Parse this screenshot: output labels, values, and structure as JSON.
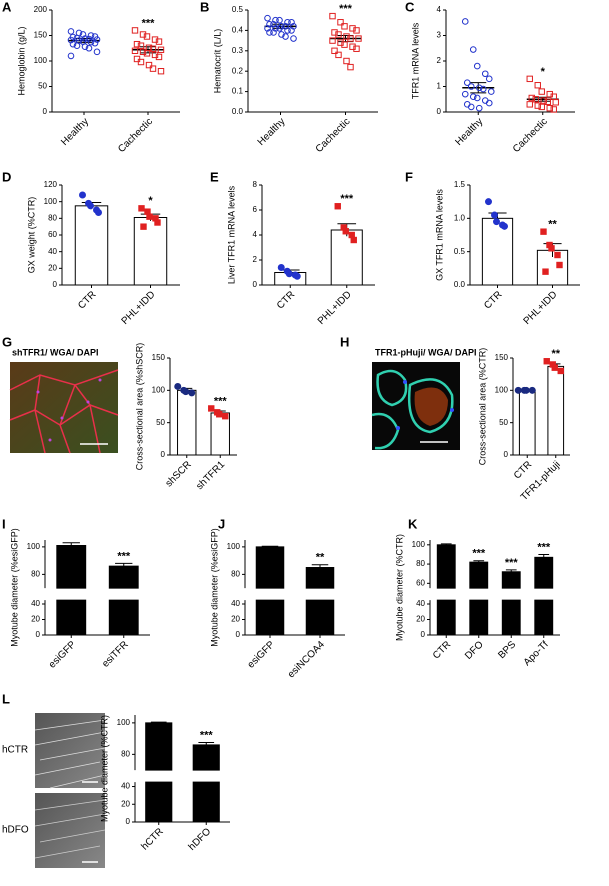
{
  "chart_data": [
    {
      "type": "strip",
      "label": "A",
      "ylabel": "Hemoglobin (g/L)",
      "categories": [
        "Healthy",
        "Cachectic"
      ],
      "values": [
        140,
        122
      ],
      "errors": [
        4,
        6
      ],
      "points": [
        [
          158,
          155,
          152,
          150,
          148,
          147,
          145,
          144,
          143,
          142,
          141,
          140,
          138,
          137,
          135,
          133,
          130,
          128,
          125,
          118,
          110
        ],
        [
          160,
          152,
          148,
          142,
          138,
          133,
          130,
          126,
          124,
          122,
          120,
          118,
          115,
          112,
          108,
          104,
          98,
          92,
          85,
          80
        ]
      ],
      "point_colors": [
        "#2233cc",
        "#e02020"
      ],
      "markers": [
        "circle",
        "square"
      ],
      "filled": false,
      "significance": [
        null,
        "***"
      ],
      "ylim": [
        0,
        200
      ],
      "yticks": [
        0,
        50,
        100,
        150,
        200
      ]
    },
    {
      "type": "strip",
      "label": "B",
      "ylabel": "Hematocrit (L/L)",
      "categories": [
        "Healthy",
        "Cachectic"
      ],
      "values": [
        0.42,
        0.36
      ],
      "errors": [
        0.01,
        0.015
      ],
      "points": [
        [
          0.46,
          0.45,
          0.45,
          0.44,
          0.44,
          0.43,
          0.43,
          0.42,
          0.42,
          0.42,
          0.41,
          0.41,
          0.41,
          0.4,
          0.4,
          0.39,
          0.39,
          0.38,
          0.37,
          0.36
        ],
        [
          0.47,
          0.44,
          0.42,
          0.41,
          0.4,
          0.39,
          0.38,
          0.37,
          0.36,
          0.36,
          0.35,
          0.34,
          0.33,
          0.32,
          0.31,
          0.3,
          0.28,
          0.25,
          0.22
        ]
      ],
      "point_colors": [
        "#2233cc",
        "#e02020"
      ],
      "markers": [
        "circle",
        "square"
      ],
      "filled": false,
      "significance": [
        null,
        "***"
      ],
      "ylim": [
        0,
        0.5
      ],
      "yticks": [
        {
          "value": 0,
          "label": "0.0"
        },
        0.1,
        0.2,
        0.3,
        0.4,
        0.5
      ]
    },
    {
      "type": "strip",
      "label": "C",
      "ylabel": "TFR1 mRNA levels",
      "categories": [
        "Healthy",
        "Cachectic"
      ],
      "values": [
        0.95,
        0.5
      ],
      "errors": [
        0.2,
        0.08
      ],
      "points": [
        [
          3.55,
          2.45,
          1.8,
          1.5,
          1.3,
          1.15,
          1.0,
          0.95,
          0.9,
          0.8,
          0.7,
          0.6,
          0.55,
          0.45,
          0.35,
          0.3,
          0.2,
          0.15
        ],
        [
          1.3,
          1.05,
          0.8,
          0.7,
          0.6,
          0.55,
          0.5,
          0.45,
          0.4,
          0.38,
          0.3,
          0.25,
          0.2,
          0.15,
          0.1
        ]
      ],
      "point_colors": [
        "#2233cc",
        "#e02020"
      ],
      "markers": [
        "circle",
        "square"
      ],
      "filled": false,
      "significance": [
        null,
        "*"
      ],
      "ylim": [
        0,
        4
      ],
      "yticks": [
        0,
        1,
        2,
        3,
        4
      ]
    },
    {
      "type": "bar",
      "label": "D",
      "ylabel": "GX weight (%CTR)",
      "categories": [
        "CTR",
        "PHL+IDD"
      ],
      "values": [
        95,
        81
      ],
      "errors": [
        4,
        4
      ],
      "color": "#ffffff",
      "points": [
        [
          108,
          98,
          95,
          90,
          87
        ],
        [
          92,
          88,
          82,
          80,
          75,
          70
        ]
      ],
      "point_colors": [
        "#2233cc",
        "#e02020"
      ],
      "markers": [
        "circle",
        "square"
      ],
      "filled": true,
      "significance": [
        null,
        "*"
      ],
      "ylim": [
        0,
        120
      ],
      "yticks": [
        0,
        20,
        40,
        60,
        80,
        100,
        120
      ]
    },
    {
      "type": "bar",
      "label": "E",
      "ylabel": "Liver TFR1 mRNA levels",
      "categories": [
        "CTR",
        "PHL+IDD"
      ],
      "values": [
        1.0,
        4.4
      ],
      "errors": [
        0.2,
        0.5
      ],
      "color": "#ffffff",
      "points": [
        [
          1.4,
          1.1,
          0.9,
          0.8,
          0.7
        ],
        [
          6.3,
          4.6,
          4.3,
          4.0,
          3.6
        ]
      ],
      "point_colors": [
        "#2233cc",
        "#e02020"
      ],
      "markers": [
        "circle",
        "square"
      ],
      "filled": true,
      "significance": [
        null,
        "***"
      ],
      "ylim": [
        0,
        8
      ],
      "yticks": [
        0,
        2,
        4,
        6,
        8
      ]
    },
    {
      "type": "bar",
      "label": "F",
      "ylabel": "GX TFR1 mRNA levels",
      "categories": [
        "CTR",
        "PHL+IDD"
      ],
      "values": [
        1.0,
        0.52
      ],
      "errors": [
        0.08,
        0.1
      ],
      "color": "#ffffff",
      "points": [
        [
          1.25,
          1.05,
          0.95,
          0.9,
          0.88
        ],
        [
          0.8,
          0.6,
          0.55,
          0.45,
          0.3,
          0.2
        ]
      ],
      "point_colors": [
        "#2233cc",
        "#e02020"
      ],
      "markers": [
        "circle",
        "square"
      ],
      "filled": true,
      "significance": [
        null,
        "**"
      ],
      "ylim": [
        0,
        1.5
      ],
      "yticks": [
        {
          "value": 0,
          "label": "0.0"
        },
        0.5,
        {
          "value": 1,
          "label": "1.0"
        },
        1.5
      ]
    },
    {
      "type": "bar",
      "label": "G",
      "ylabel": "Cross-sectional area (%shSCR)",
      "categories": [
        "shSCR",
        "shTFR1"
      ],
      "values": [
        100,
        65
      ],
      "errors": [
        3,
        3
      ],
      "color": "#ffffff",
      "points": [
        [
          106,
          100,
          98,
          96
        ],
        [
          72,
          66,
          63,
          60
        ]
      ],
      "point_colors": [
        "#1a2a80",
        "#e02020"
      ],
      "markers": [
        "circle",
        "square"
      ],
      "filled": true,
      "significance": [
        null,
        "***"
      ],
      "ylim": [
        0,
        150
      ],
      "yticks": [
        0,
        50,
        100,
        150
      ],
      "image_label": [
        {
          "text": "shTFR1",
          "color": "#3aa13a"
        },
        {
          "text": "/ ",
          "color": "#000000"
        },
        {
          "text": "WGA",
          "color": "#e02020"
        },
        {
          "text": "/ ",
          "color": "#000000"
        },
        {
          "text": "DAPI",
          "color": "#2233cc"
        }
      ]
    },
    {
      "type": "bar",
      "label": "H",
      "ylabel": "Cross-sectional area (%CTR)",
      "categories": [
        "CTR",
        "TFR1-pHuji"
      ],
      "values": [
        100,
        137
      ],
      "errors": [
        0,
        4
      ],
      "color": "#ffffff",
      "points": [
        [
          100,
          100,
          100,
          100
        ],
        [
          145,
          140,
          135,
          130
        ]
      ],
      "point_colors": [
        "#1a2a80",
        "#e02020"
      ],
      "markers": [
        "circle",
        "square"
      ],
      "filled": true,
      "significance": [
        null,
        "**"
      ],
      "ylim": [
        0,
        150
      ],
      "yticks": [
        0,
        50,
        100,
        150
      ],
      "image_label": [
        {
          "text": "TFR1-pHuji",
          "color": "#e02020"
        },
        {
          "text": "/ ",
          "color": "#000000"
        },
        {
          "text": "WGA",
          "color": "#3aa13a"
        },
        {
          "text": "/ ",
          "color": "#000000"
        },
        {
          "text": "DAPI",
          "color": "#2233cc"
        }
      ]
    },
    {
      "type": "bar",
      "label": "I",
      "ylabel": "Myotube diameter (%esiGFP)",
      "categories": [
        "esiGFP",
        "esiTFR"
      ],
      "values": [
        101,
        86
      ],
      "errors": [
        2,
        2
      ],
      "color": "#000000",
      "significance": [
        null,
        "***"
      ],
      "ylim": [
        0,
        105
      ],
      "ybreak": [
        45,
        70
      ],
      "yticks": [
        0,
        20,
        40,
        80,
        100
      ]
    },
    {
      "type": "bar",
      "label": "J",
      "ylabel": "Myotube diameter (%esiGFP)",
      "categories": [
        "esiGFP",
        "esiNCOA4"
      ],
      "values": [
        100,
        85
      ],
      "errors": [
        0.5,
        2
      ],
      "color": "#000000",
      "significance": [
        null,
        "**"
      ],
      "ylim": [
        0,
        105
      ],
      "ybreak": [
        45,
        70
      ],
      "yticks": [
        0,
        20,
        40,
        80,
        100
      ]
    },
    {
      "type": "bar",
      "label": "K",
      "ylabel": "Myotube diameter (%CTR)",
      "categories": [
        "CTR",
        "DFO",
        "BPS",
        "Apo-Tf"
      ],
      "values": [
        100,
        82,
        72,
        87
      ],
      "errors": [
        1,
        1.5,
        2,
        3
      ],
      "color": "#000000",
      "significance": [
        null,
        "***",
        "***",
        "***"
      ],
      "ylim": [
        0,
        105
      ],
      "ybreak": [
        45,
        55
      ],
      "yticks": [
        0,
        20,
        40,
        60,
        80,
        100
      ]
    },
    {
      "type": "bar",
      "label": "L",
      "ylabel": "Myotube diameter (%CTR)",
      "categories": [
        "hCTR",
        "hDFO"
      ],
      "values": [
        100,
        86
      ],
      "errors": [
        0.5,
        1.5
      ],
      "color": "#000000",
      "significance": [
        null,
        "***"
      ],
      "ylim": [
        0,
        105
      ],
      "ybreak": [
        45,
        70
      ],
      "yticks": [
        0,
        20,
        40,
        80,
        100
      ],
      "image_labels": [
        "hCTR",
        "hDFO"
      ]
    }
  ]
}
